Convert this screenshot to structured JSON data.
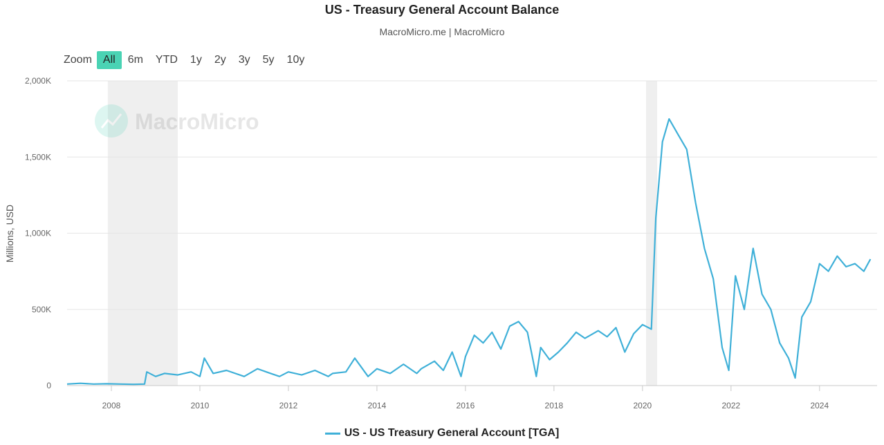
{
  "header": {
    "title": "US - Treasury General Account Balance",
    "subtitle": "MacroMicro.me | MacroMicro"
  },
  "zoom": {
    "label": "Zoom",
    "buttons": [
      "All",
      "6m",
      "YTD",
      "1y",
      "2y",
      "3y",
      "5y",
      "10y"
    ],
    "active": "All"
  },
  "watermark": {
    "text": "MacroMicro"
  },
  "colors": {
    "series": "#3fb0d8",
    "accent": "#4ad3b4",
    "recession": "#efefef"
  },
  "chart_data": {
    "type": "line",
    "title": "US - Treasury General Account Balance",
    "subtitle": "MacroMicro.me | MacroMicro",
    "ylabel": "Millions, USD",
    "xlim": [
      2007.0,
      2025.3
    ],
    "ylim": [
      0,
      2000000
    ],
    "x_ticks": [
      2008,
      2010,
      2012,
      2014,
      2016,
      2018,
      2020,
      2022,
      2024
    ],
    "x_tick_labels": [
      "2008",
      "2010",
      "2012",
      "2014",
      "2016",
      "2018",
      "2020",
      "2022",
      "2024"
    ],
    "y_ticks": [
      0,
      500000,
      1000000,
      1500000,
      2000000
    ],
    "y_tick_labels": [
      "0",
      "500K",
      "1,000K",
      "1,500K",
      "2,000K"
    ],
    "grid": true,
    "legend": "bottom-center",
    "shaded_periods": [
      [
        2007.92,
        2009.5
      ],
      [
        2020.08,
        2020.33
      ]
    ],
    "series": [
      {
        "name": "US - US Treasury General Account [TGA]",
        "x": [
          2007.0,
          2007.3,
          2007.6,
          2007.9,
          2008.2,
          2008.5,
          2008.75,
          2008.8,
          2009.0,
          2009.2,
          2009.5,
          2009.8,
          2010.0,
          2010.1,
          2010.3,
          2010.6,
          2011.0,
          2011.3,
          2011.6,
          2011.8,
          2012.0,
          2012.3,
          2012.6,
          2012.9,
          2013.0,
          2013.3,
          2013.5,
          2013.8,
          2014.0,
          2014.3,
          2014.6,
          2014.9,
          2015.0,
          2015.3,
          2015.5,
          2015.7,
          2015.9,
          2016.0,
          2016.2,
          2016.4,
          2016.6,
          2016.8,
          2017.0,
          2017.2,
          2017.4,
          2017.6,
          2017.7,
          2017.9,
          2018.1,
          2018.3,
          2018.5,
          2018.7,
          2019.0,
          2019.2,
          2019.4,
          2019.6,
          2019.8,
          2020.0,
          2020.2,
          2020.3,
          2020.45,
          2020.6,
          2020.8,
          2021.0,
          2021.2,
          2021.4,
          2021.6,
          2021.8,
          2021.95,
          2022.1,
          2022.3,
          2022.5,
          2022.7,
          2022.9,
          2023.1,
          2023.3,
          2023.45,
          2023.6,
          2023.8,
          2024.0,
          2024.2,
          2024.4,
          2024.6,
          2024.8,
          2025.0,
          2025.15
        ],
        "values": [
          10000,
          15000,
          10000,
          12000,
          10000,
          8000,
          10000,
          90000,
          60000,
          80000,
          70000,
          90000,
          60000,
          180000,
          80000,
          100000,
          60000,
          110000,
          80000,
          60000,
          90000,
          70000,
          100000,
          60000,
          80000,
          90000,
          180000,
          60000,
          110000,
          80000,
          140000,
          80000,
          110000,
          160000,
          100000,
          220000,
          60000,
          190000,
          330000,
          280000,
          350000,
          240000,
          390000,
          420000,
          350000,
          60000,
          250000,
          170000,
          220000,
          280000,
          350000,
          310000,
          360000,
          320000,
          380000,
          220000,
          340000,
          400000,
          370000,
          1100000,
          1600000,
          1750000,
          1650000,
          1550000,
          1200000,
          900000,
          700000,
          250000,
          100000,
          720000,
          500000,
          900000,
          600000,
          500000,
          280000,
          180000,
          50000,
          450000,
          550000,
          800000,
          750000,
          850000,
          780000,
          800000,
          750000,
          830000
        ]
      }
    ]
  },
  "legend_entries": [
    "US - US Treasury General Account [TGA]"
  ]
}
